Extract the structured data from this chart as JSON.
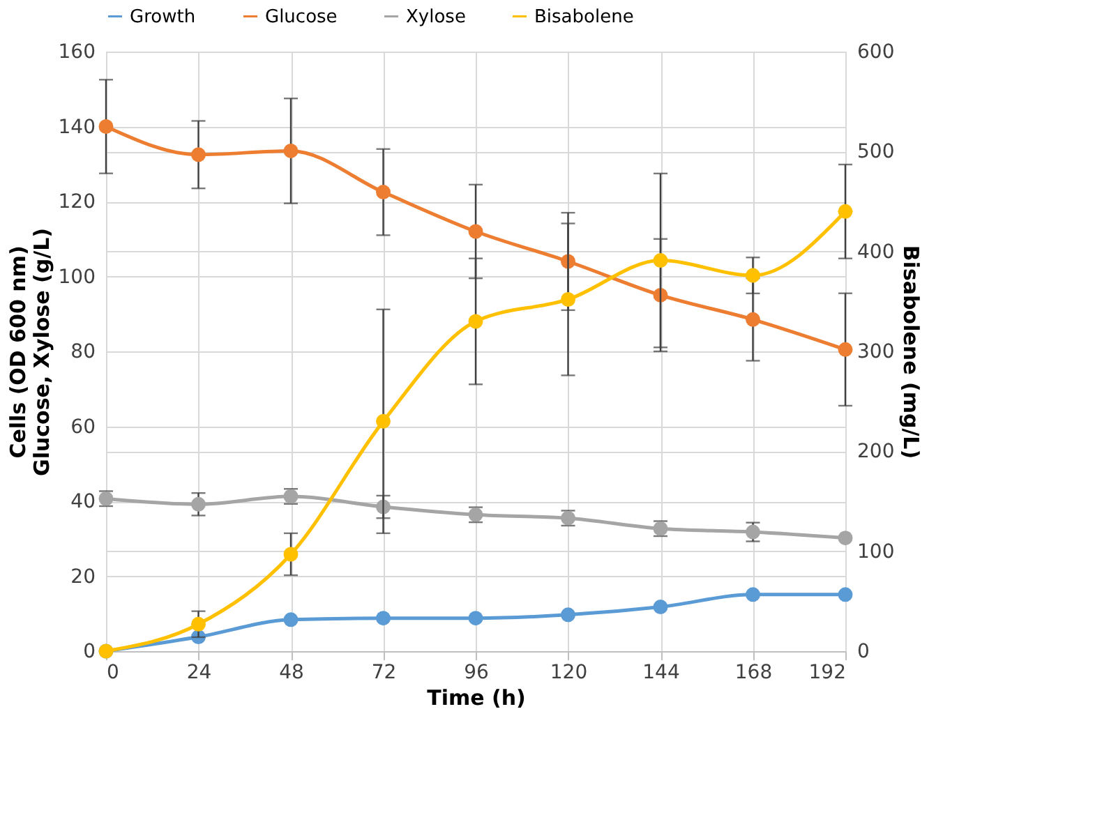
{
  "chart_data": {
    "type": "line",
    "xlabel": "Time (h)",
    "ylabel": "Cells (OD 600 nm)\nGlucose, Xylose (g/L)",
    "y2label": "Bisabolene (mg/L)",
    "x": [
      0,
      24,
      48,
      72,
      96,
      120,
      144,
      168,
      192
    ],
    "xlim": [
      0,
      192
    ],
    "xticks": [
      0,
      24,
      48,
      72,
      96,
      120,
      144,
      168,
      192
    ],
    "ylim": [
      0,
      160
    ],
    "yticks": [
      0,
      20,
      40,
      60,
      80,
      100,
      120,
      140,
      160
    ],
    "y2lim": [
      0,
      600
    ],
    "y2ticks": [
      0,
      100,
      200,
      300,
      400,
      500,
      600
    ],
    "grid": true,
    "legend": "top",
    "marker": "circle",
    "line_style": "solid",
    "series": [
      {
        "name": "Growth",
        "color": "#5b9bd5",
        "values": [
          0,
          3.8,
          8.4,
          8.8,
          8.8,
          9.7,
          11.8,
          15.1,
          15.1
        ]
      },
      {
        "name": "Glucose",
        "color": "#ed7d31",
        "values": [
          140,
          132.5,
          133.5,
          122.5,
          112,
          104,
          95,
          88.5,
          80.5
        ],
        "errors": [
          12.5,
          9,
          14,
          11.5,
          12.5,
          13,
          15,
          11,
          15
        ]
      },
      {
        "name": "Xylose",
        "color": "#a5a5a5",
        "values": [
          40.7,
          39.2,
          41.3,
          38.5,
          36.4,
          35.5,
          32.7,
          31.8,
          30.2
        ],
        "errors": [
          2,
          3,
          2,
          3,
          2,
          2,
          2,
          2.5,
          null
        ]
      },
      {
        "name": "Bisabolene",
        "color": "#ffc000",
        "axis": "y2",
        "values": [
          0,
          27,
          97,
          230,
          330,
          352,
          391,
          376,
          440
        ],
        "errors": [
          null,
          13,
          21,
          112,
          63,
          76,
          87,
          18,
          47
        ]
      }
    ]
  }
}
